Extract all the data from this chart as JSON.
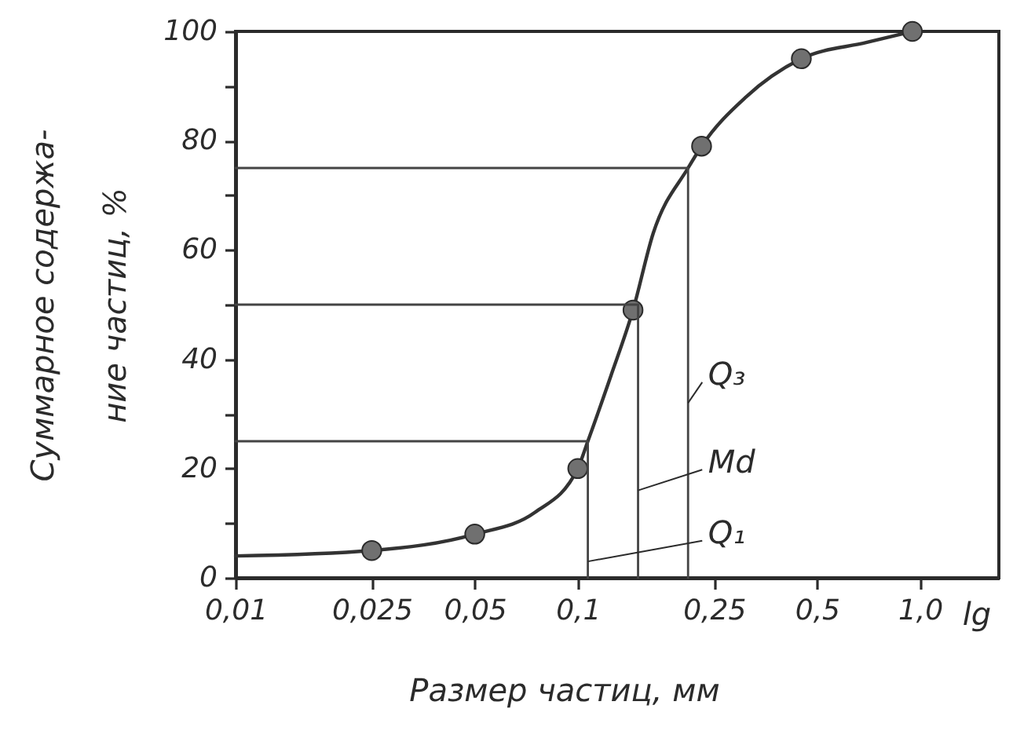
{
  "chart_data": {
    "type": "line",
    "xlabel": "Размер частиц, мм",
    "ylabel": "Суммарное содержа-\nние частиц, %",
    "log": "x",
    "grid": false,
    "xlim": [
      0.01,
      1.7
    ],
    "ylim": [
      0,
      100
    ],
    "xticks": [
      {
        "value": 0.01,
        "label": "0,01"
      },
      {
        "value": 0.025,
        "label": "0,025"
      },
      {
        "value": 0.05,
        "label": "0,05"
      },
      {
        "value": 0.1,
        "label": "0,1"
      },
      {
        "value": 0.25,
        "label": "0,25"
      },
      {
        "value": 0.5,
        "label": "0,5"
      },
      {
        "value": 1.0,
        "label": "1,0"
      }
    ],
    "yticks": [
      0,
      {
        "value": 10,
        "label": null
      },
      20,
      {
        "value": 30,
        "label": null
      },
      40,
      {
        "value": 50,
        "label": null
      },
      60,
      {
        "value": 70,
        "label": null
      },
      80,
      {
        "value": 90,
        "label": null
      },
      100
    ],
    "annotations": [
      {
        "text": "Q₃",
        "x": 0.21,
        "y": 32
      },
      {
        "text": "Md",
        "x": 0.15,
        "y": 16
      },
      {
        "text": "Q₁",
        "x": 0.107,
        "y": 3
      },
      "lg"
    ],
    "series": [
      {
        "color": "#333333",
        "marker": "none",
        "x": [
          0.01,
          0.025,
          0.05,
          0.075,
          0.1,
          0.107,
          0.125,
          0.145,
          0.166,
          0.21,
          0.23,
          0.31,
          0.45,
          0.7,
          0.95
        ],
        "values": [
          4,
          5,
          8,
          12,
          20,
          25,
          37,
          49,
          63,
          75,
          79,
          88,
          95,
          98,
          100
        ]
      },
      {
        "type": "scatter",
        "color": "#707070",
        "marker": "circle",
        "x": [
          0.025,
          0.05,
          0.1,
          0.145,
          0.23,
          0.45,
          0.95
        ],
        "values": [
          5,
          8,
          20,
          49,
          79,
          95,
          100
        ]
      },
      {
        "color": "#444444",
        "x": [
          0.01,
          0.107,
          0.107
        ],
        "values": [
          25,
          25,
          0
        ]
      },
      {
        "color": "#444444",
        "x": [
          0.01,
          0.15,
          0.15
        ],
        "values": [
          50,
          50,
          0
        ]
      },
      {
        "color": "#444444",
        "x": [
          0.01,
          0.21,
          0.21
        ],
        "values": [
          75,
          75,
          0
        ]
      }
    ]
  }
}
